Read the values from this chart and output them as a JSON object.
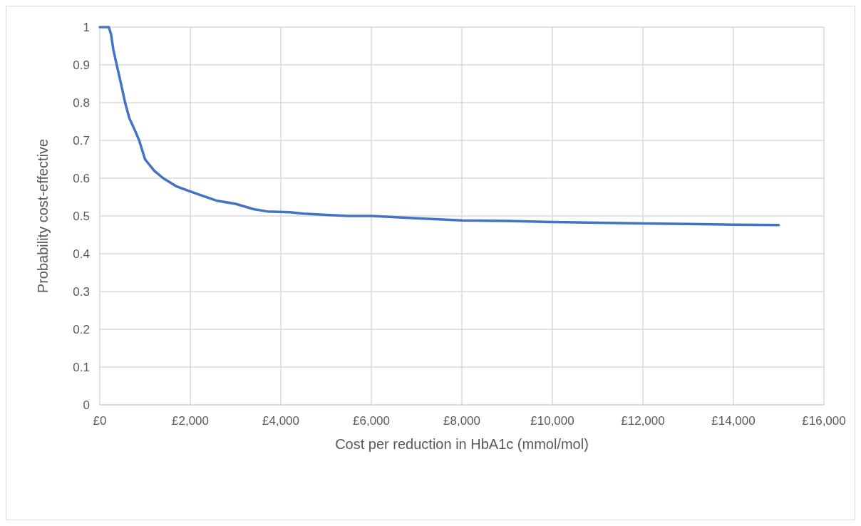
{
  "chart_data": {
    "type": "line",
    "xlabel": "Cost per reduction in HbA1c (mmol/mol)",
    "ylabel": "Probability cost-effective",
    "x": [
      0,
      200,
      250,
      300,
      374,
      450,
      560,
      650,
      800,
      870,
      1000,
      1200,
      1400,
      1700,
      2000,
      2300,
      2600,
      3000,
      3400,
      3700,
      4200,
      4500,
      5000,
      5500,
      6000,
      7000,
      8000,
      9000,
      10000,
      11000,
      12000,
      13000,
      14000,
      15000
    ],
    "series": [
      {
        "color": "#4472c4",
        "values": [
          1,
          1,
          0.98,
          0.94,
          0.9,
          0.86,
          0.8,
          0.76,
          0.72,
          0.7,
          0.65,
          0.62,
          0.6,
          0.578,
          0.565,
          0.552,
          0.54,
          0.532,
          0.518,
          0.512,
          0.51,
          0.506,
          0.503,
          0.5,
          0.5,
          0.494,
          0.488,
          0.487,
          0.484,
          0.482,
          0.48,
          0.479,
          0.477,
          0.476
        ]
      }
    ],
    "xlim": [
      0,
      16000
    ],
    "xticks": [
      {
        "value": 0,
        "label": "£0"
      },
      {
        "value": 2000,
        "label": "£2,000"
      },
      {
        "value": 4000,
        "label": "£4,000"
      },
      {
        "value": 6000,
        "label": "£6,000"
      },
      {
        "value": 8000,
        "label": "£8,000"
      },
      {
        "value": 10000,
        "label": "£10,000"
      },
      {
        "value": 12000,
        "label": "£12,000"
      },
      {
        "value": 14000,
        "label": "£14,000"
      },
      {
        "value": 16000,
        "label": "£16,000"
      }
    ],
    "ylim": [
      0,
      1
    ],
    "yticks": [
      0,
      0.1,
      0.2,
      0.3,
      0.4,
      0.5,
      0.6,
      0.7,
      0.8,
      0.9,
      1
    ],
    "grid": true,
    "marker": "none",
    "line_style": "solid"
  }
}
